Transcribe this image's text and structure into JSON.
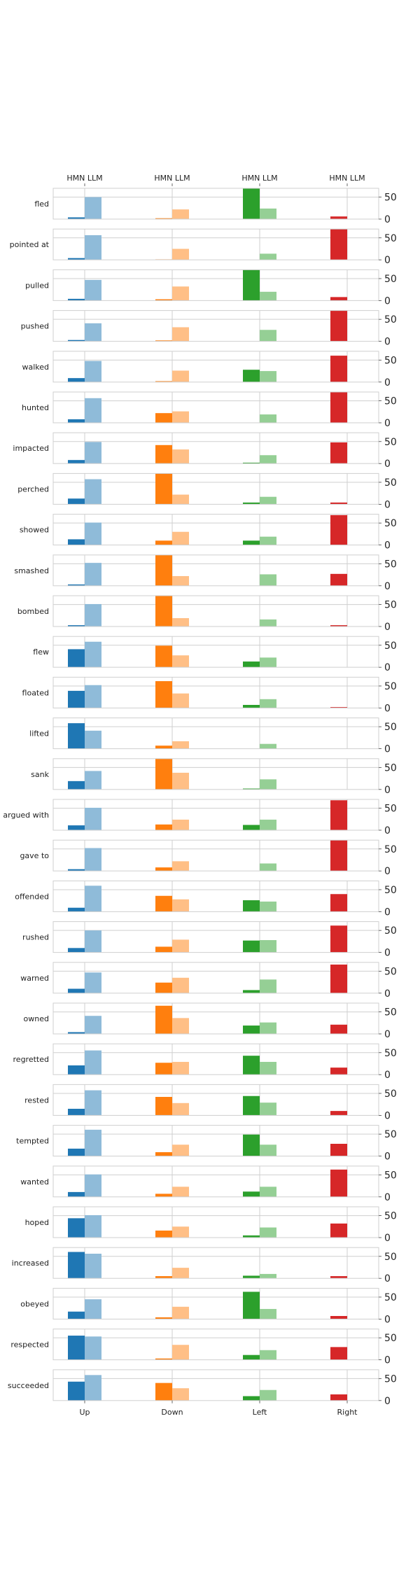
{
  "chart_data": {
    "type": "bar",
    "layout": "small-multiples",
    "categories": [
      "Up",
      "Down",
      "Left",
      "Right"
    ],
    "top_tick_labels": [
      "HMN LLM",
      "HMN LLM",
      "HMN LLM",
      "HMN LLM"
    ],
    "series": [
      {
        "name": "HMN"
      },
      {
        "name": "LLM"
      }
    ],
    "ylim": [
      0,
      70
    ],
    "yticks": [
      0,
      50
    ],
    "colors": {
      "Up": [
        "#1f77b4",
        "#8fbbd9"
      ],
      "Down": [
        "#ff7f0e",
        "#ffbf86"
      ],
      "Left": [
        "#2ca02c",
        "#95cf95"
      ],
      "Right": [
        "#d62728",
        "#eb9393"
      ]
    },
    "grid": true,
    "rows": [
      {
        "verb": "fled",
        "hmn": [
          4,
          2,
          81,
          6
        ],
        "llm": [
          50,
          22,
          24,
          0
        ]
      },
      {
        "verb": "pointed at",
        "hmn": [
          4,
          1,
          0,
          88
        ],
        "llm": [
          56,
          25,
          14,
          0
        ]
      },
      {
        "verb": "pulled",
        "hmn": [
          4,
          3,
          81,
          8
        ],
        "llm": [
          47,
          32,
          20,
          0
        ]
      },
      {
        "verb": "pushed",
        "hmn": [
          3,
          2,
          0,
          90
        ],
        "llm": [
          41,
          32,
          26,
          0
        ]
      },
      {
        "verb": "walked",
        "hmn": [
          9,
          2,
          28,
          60
        ],
        "llm": [
          48,
          26,
          25,
          0
        ]
      },
      {
        "verb": "hunted",
        "hmn": [
          8,
          22,
          0,
          71
        ],
        "llm": [
          56,
          26,
          19,
          0
        ]
      },
      {
        "verb": "impacted",
        "hmn": [
          8,
          42,
          2,
          48
        ],
        "llm": [
          49,
          32,
          19,
          0
        ]
      },
      {
        "verb": "perched",
        "hmn": [
          13,
          79,
          4,
          4
        ],
        "llm": [
          57,
          22,
          17,
          0
        ]
      },
      {
        "verb": "showed",
        "hmn": [
          13,
          10,
          10,
          68
        ],
        "llm": [
          51,
          30,
          19,
          0
        ]
      },
      {
        "verb": "smashed",
        "hmn": [
          3,
          70,
          0,
          27
        ],
        "llm": [
          52,
          22,
          26,
          0
        ]
      },
      {
        "verb": "bombed",
        "hmn": [
          3,
          90,
          0,
          3
        ],
        "llm": [
          51,
          19,
          16,
          0
        ]
      },
      {
        "verb": "flew",
        "hmn": [
          41,
          49,
          13,
          0
        ],
        "llm": [
          58,
          27,
          22,
          0
        ]
      },
      {
        "verb": "floated",
        "hmn": [
          39,
          61,
          7,
          2
        ],
        "llm": [
          52,
          33,
          20,
          0
        ]
      },
      {
        "verb": "lifted",
        "hmn": [
          58,
          7,
          0,
          0
        ],
        "llm": [
          41,
          17,
          11,
          0
        ]
      },
      {
        "verb": "sank",
        "hmn": [
          19,
          75,
          2,
          0
        ],
        "llm": [
          42,
          38,
          23,
          0
        ]
      },
      {
        "verb": "argued with",
        "hmn": [
          11,
          13,
          12,
          68
        ],
        "llm": [
          51,
          24,
          24,
          0
        ]
      },
      {
        "verb": "gave to",
        "hmn": [
          4,
          8,
          0,
          86
        ],
        "llm": [
          52,
          22,
          17,
          0
        ]
      },
      {
        "verb": "offended",
        "hmn": [
          9,
          36,
          26,
          40
        ],
        "llm": [
          59,
          28,
          23,
          0
        ]
      },
      {
        "verb": "rushed",
        "hmn": [
          10,
          13,
          27,
          61
        ],
        "llm": [
          50,
          29,
          28,
          0
        ]
      },
      {
        "verb": "warned",
        "hmn": [
          10,
          24,
          7,
          65
        ],
        "llm": [
          47,
          35,
          31,
          0
        ]
      },
      {
        "verb": "owned",
        "hmn": [
          4,
          64,
          19,
          21
        ],
        "llm": [
          41,
          36,
          26,
          0
        ]
      },
      {
        "verb": "regretted",
        "hmn": [
          21,
          27,
          43,
          16
        ],
        "llm": [
          55,
          29,
          29,
          0
        ]
      },
      {
        "verb": "rested",
        "hmn": [
          15,
          42,
          44,
          10
        ],
        "llm": [
          57,
          28,
          29,
          0
        ]
      },
      {
        "verb": "tempted",
        "hmn": [
          17,
          9,
          49,
          28
        ],
        "llm": [
          60,
          26,
          26,
          0
        ]
      },
      {
        "verb": "wanted",
        "hmn": [
          11,
          7,
          12,
          62
        ],
        "llm": [
          51,
          23,
          23,
          0
        ]
      },
      {
        "verb": "hoped",
        "hmn": [
          44,
          16,
          5,
          32
        ],
        "llm": [
          51,
          25,
          23,
          0
        ]
      },
      {
        "verb": "increased",
        "hmn": [
          60,
          5,
          6,
          5
        ],
        "llm": [
          56,
          24,
          10,
          0
        ]
      },
      {
        "verb": "obeyed",
        "hmn": [
          17,
          4,
          62,
          7
        ],
        "llm": [
          45,
          28,
          23,
          0
        ]
      },
      {
        "verb": "respected",
        "hmn": [
          55,
          3,
          11,
          29
        ],
        "llm": [
          53,
          34,
          22,
          0
        ]
      },
      {
        "verb": "succeeded",
        "hmn": [
          43,
          40,
          10,
          14
        ],
        "llm": [
          58,
          28,
          24,
          0
        ]
      }
    ]
  }
}
